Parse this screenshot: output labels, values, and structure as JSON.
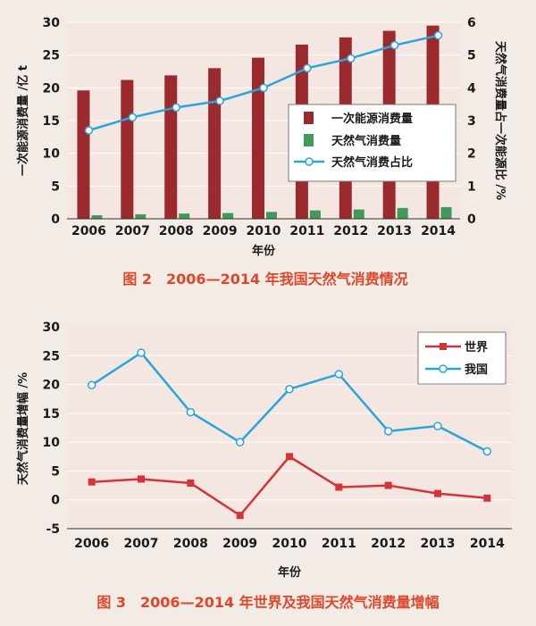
{
  "figure2": {
    "caption": "图 2　2006—2014 年我国天然气消费情况",
    "chart_data": {
      "type": "bar",
      "categories": [
        "2006",
        "2007",
        "2008",
        "2009",
        "2010",
        "2011",
        "2012",
        "2013",
        "2014"
      ],
      "series": [
        {
          "name": "一次能源消费量",
          "type": "bar",
          "axis": "left",
          "color": "#9b2a2e",
          "values": [
            19.6,
            21.2,
            21.9,
            23.0,
            24.6,
            26.6,
            27.7,
            28.7,
            29.5
          ]
        },
        {
          "name": "天然气消费量",
          "type": "bar",
          "axis": "left",
          "color": "#3f9a5c",
          "values": [
            0.54,
            0.69,
            0.8,
            0.88,
            1.05,
            1.28,
            1.42,
            1.65,
            1.78
          ]
        },
        {
          "name": "天然气消费占比",
          "type": "line",
          "axis": "right",
          "color": "#27a6de",
          "values": [
            2.7,
            3.1,
            3.4,
            3.6,
            4.0,
            4.6,
            4.9,
            5.3,
            5.6
          ]
        }
      ],
      "xlabel": "年份",
      "ylabel": "一次能源消费量 /亿 t",
      "y2label": "天然气消费量占一次能源比 /%",
      "ylim": [
        0,
        30
      ],
      "y2lim": [
        0,
        6
      ],
      "yticks": [
        0,
        5,
        10,
        15,
        20,
        25,
        30
      ],
      "y2ticks": [
        0,
        1,
        2,
        3,
        4,
        5,
        6
      ],
      "legend": "right",
      "grid": true
    }
  },
  "figure3": {
    "caption": "图 3　2006—2014 年世界及我国天然气消费量增幅",
    "chart_data": {
      "type": "line",
      "categories": [
        "2006",
        "2007",
        "2008",
        "2009",
        "2010",
        "2011",
        "2012",
        "2013",
        "2014"
      ],
      "series": [
        {
          "name": "世界",
          "color": "#d63339",
          "marker": "square",
          "values": [
            3.1,
            3.6,
            2.9,
            -2.7,
            7.5,
            2.2,
            2.5,
            1.1,
            0.3
          ]
        },
        {
          "name": "我国",
          "color": "#27a6de",
          "marker": "circle",
          "values": [
            19.9,
            25.5,
            15.2,
            10.0,
            19.2,
            21.8,
            11.9,
            12.8,
            8.4
          ]
        }
      ],
      "xlabel": "年份",
      "ylabel": "天然气消费量增幅 /%",
      "ylim": [
        -5,
        30
      ],
      "yticks": [
        -5,
        0,
        5,
        10,
        15,
        20,
        25,
        30
      ],
      "legend": "top-right",
      "grid": true
    }
  }
}
